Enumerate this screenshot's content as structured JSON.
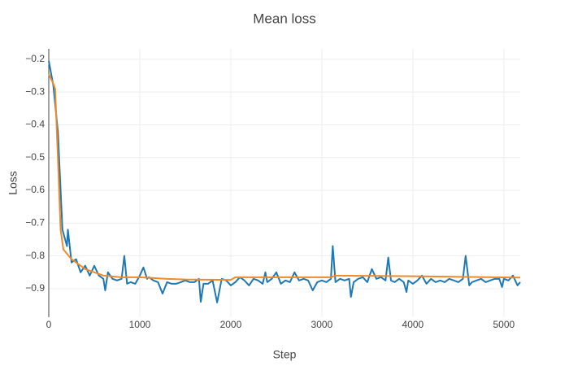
{
  "chart_data": {
    "type": "line",
    "title": "Mean loss",
    "x_label": "Step",
    "y_label": "Loss",
    "xlim": [
      0,
      5180
    ],
    "ylim": [
      -0.987,
      -0.168
    ],
    "xticks": [
      0,
      1000,
      2000,
      3000,
      4000,
      5000
    ],
    "yticks": [
      {
        "value": -0.2,
        "label": "−0.2"
      },
      {
        "value": -0.3,
        "label": "−0.3"
      },
      {
        "value": -0.4,
        "label": "−0.4"
      },
      {
        "value": -0.5,
        "label": "−0.5"
      },
      {
        "value": -0.6,
        "label": "−0.6"
      },
      {
        "value": -0.7,
        "label": "−0.7"
      },
      {
        "value": -0.8,
        "label": "−0.8"
      },
      {
        "value": -0.9,
        "label": "−0.9"
      }
    ],
    "grid": true,
    "series": [
      {
        "color": "#1f77b4",
        "x": [
          0,
          50,
          100,
          150,
          200,
          210,
          250,
          300,
          350,
          400,
          450,
          500,
          550,
          600,
          620,
          650,
          700,
          750,
          800,
          830,
          860,
          900,
          950,
          1000,
          1040,
          1080,
          1100,
          1150,
          1200,
          1250,
          1300,
          1350,
          1400,
          1450,
          1500,
          1550,
          1600,
          1650,
          1670,
          1700,
          1750,
          1800,
          1850,
          1900,
          1950,
          2000,
          2050,
          2100,
          2150,
          2200,
          2250,
          2300,
          2350,
          2380,
          2400,
          2450,
          2500,
          2550,
          2600,
          2650,
          2700,
          2750,
          2800,
          2850,
          2900,
          2950,
          3000,
          3050,
          3100,
          3120,
          3150,
          3200,
          3250,
          3300,
          3320,
          3350,
          3400,
          3450,
          3500,
          3550,
          3600,
          3650,
          3700,
          3730,
          3760,
          3800,
          3850,
          3900,
          3930,
          3950,
          4000,
          4050,
          4100,
          4150,
          4200,
          4250,
          4300,
          4350,
          4400,
          4450,
          4500,
          4550,
          4580,
          4620,
          4650,
          4700,
          4750,
          4800,
          4850,
          4900,
          4950,
          4980,
          5000,
          5050,
          5100,
          5150,
          5180
        ],
        "values": [
          -0.205,
          -0.28,
          -0.42,
          -0.72,
          -0.77,
          -0.72,
          -0.82,
          -0.81,
          -0.85,
          -0.83,
          -0.86,
          -0.83,
          -0.86,
          -0.87,
          -0.905,
          -0.85,
          -0.87,
          -0.875,
          -0.87,
          -0.8,
          -0.885,
          -0.88,
          -0.885,
          -0.86,
          -0.835,
          -0.87,
          -0.865,
          -0.875,
          -0.88,
          -0.915,
          -0.88,
          -0.885,
          -0.885,
          -0.88,
          -0.875,
          -0.88,
          -0.88,
          -0.87,
          -0.94,
          -0.885,
          -0.885,
          -0.875,
          -0.942,
          -0.87,
          -0.875,
          -0.89,
          -0.88,
          -0.865,
          -0.875,
          -0.89,
          -0.87,
          -0.875,
          -0.885,
          -0.85,
          -0.88,
          -0.87,
          -0.85,
          -0.885,
          -0.875,
          -0.88,
          -0.85,
          -0.875,
          -0.87,
          -0.875,
          -0.905,
          -0.88,
          -0.875,
          -0.88,
          -0.87,
          -0.77,
          -0.88,
          -0.87,
          -0.875,
          -0.87,
          -0.925,
          -0.88,
          -0.87,
          -0.865,
          -0.88,
          -0.84,
          -0.87,
          -0.865,
          -0.875,
          -0.805,
          -0.875,
          -0.88,
          -0.87,
          -0.88,
          -0.91,
          -0.875,
          -0.885,
          -0.875,
          -0.86,
          -0.885,
          -0.87,
          -0.88,
          -0.875,
          -0.88,
          -0.87,
          -0.875,
          -0.88,
          -0.87,
          -0.8,
          -0.89,
          -0.88,
          -0.875,
          -0.87,
          -0.88,
          -0.875,
          -0.87,
          -0.87,
          -0.895,
          -0.87,
          -0.875,
          -0.86,
          -0.89,
          -0.88
        ]
      },
      {
        "color": "#ee8a2a",
        "x": [
          0,
          50,
          70,
          100,
          130,
          160,
          250,
          400,
          600,
          800,
          1000,
          1300,
          1500,
          2000,
          2050,
          3000,
          3100,
          3150,
          4000,
          5180
        ],
        "values": [
          -0.245,
          -0.275,
          -0.29,
          -0.5,
          -0.72,
          -0.78,
          -0.81,
          -0.84,
          -0.86,
          -0.865,
          -0.865,
          -0.87,
          -0.872,
          -0.873,
          -0.865,
          -0.865,
          -0.865,
          -0.86,
          -0.862,
          -0.866
        ]
      }
    ]
  }
}
